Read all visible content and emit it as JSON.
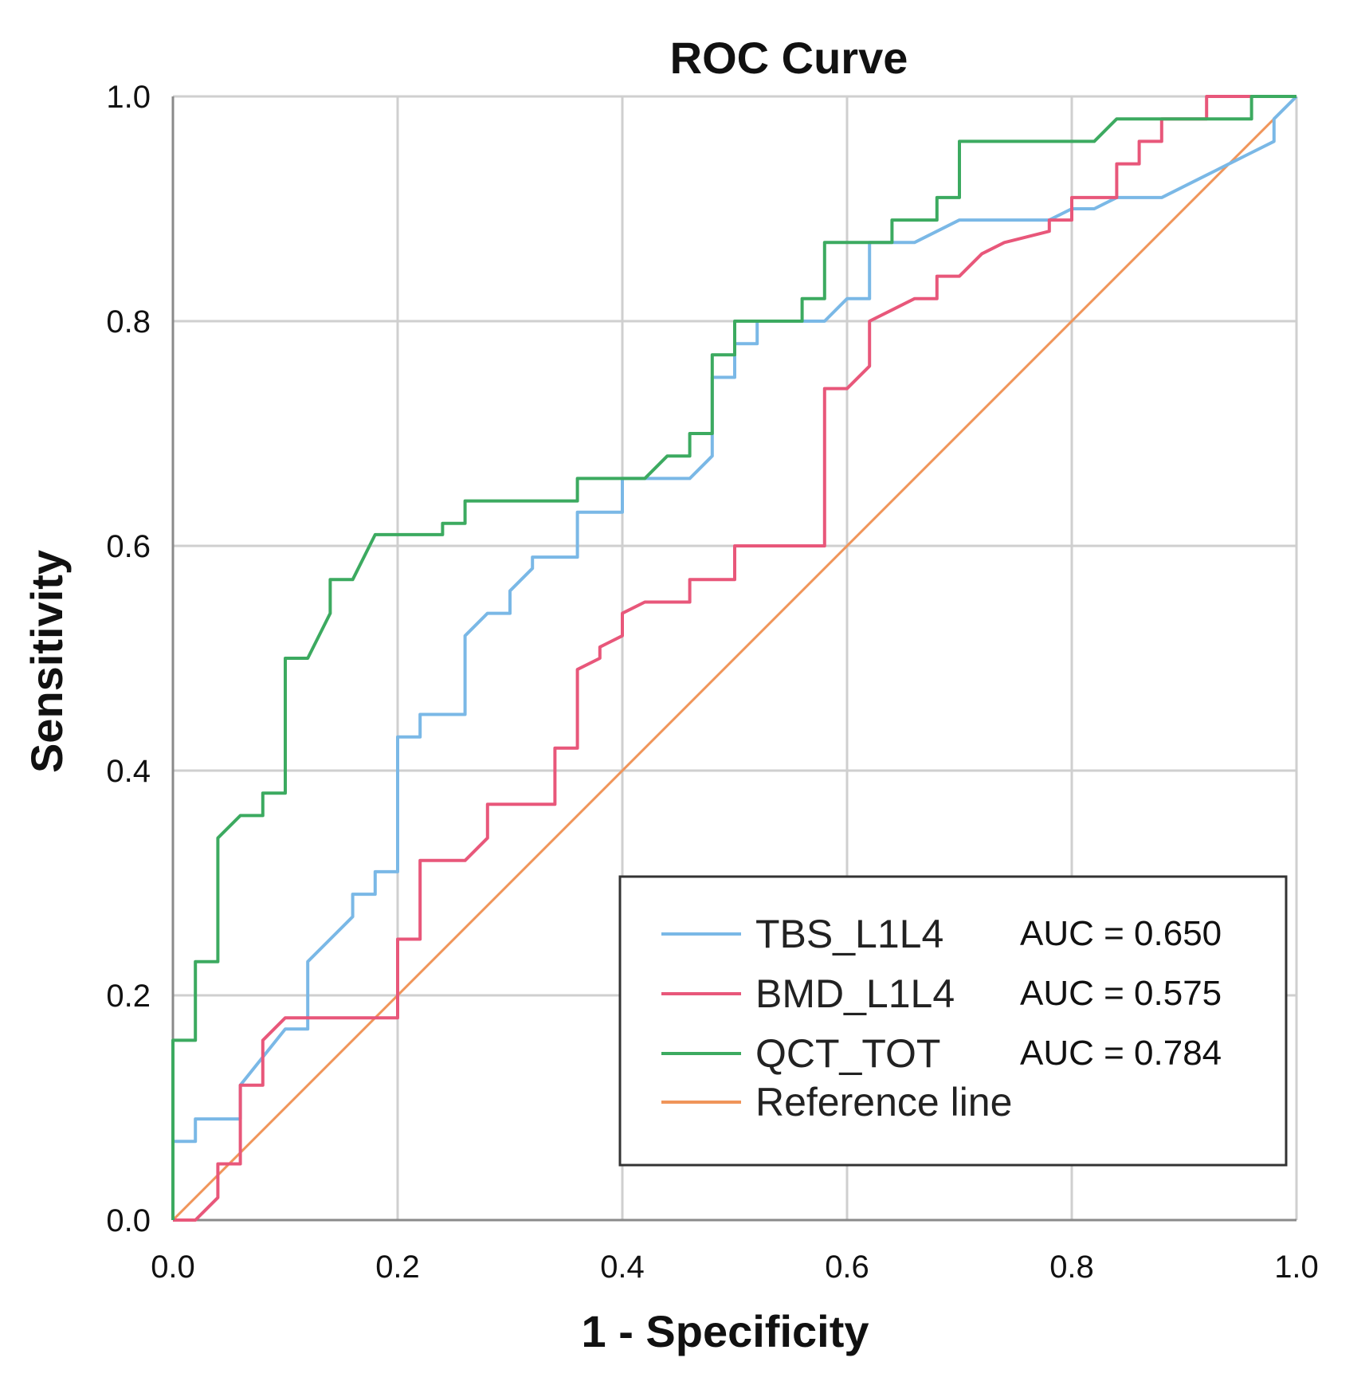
{
  "chart_data": {
    "type": "line",
    "title": "ROC Curve",
    "xlabel": "1 - Specificity",
    "ylabel": "Sensitivity",
    "xlim": [
      0,
      1
    ],
    "ylim": [
      0,
      1
    ],
    "xticks": [
      "0.0",
      "0.2",
      "0.4",
      "0.6",
      "0.8",
      "1.0"
    ],
    "yticks": [
      "0.0",
      "0.2",
      "0.4",
      "0.6",
      "0.8",
      "1.0"
    ],
    "grid": true,
    "legend_position": "bottom-right",
    "series": [
      {
        "name": "TBS_L1L4",
        "auc_label": "AUC = 0.650",
        "color": "#7ab8e6",
        "x": [
          0.0,
          0.0,
          0.02,
          0.02,
          0.06,
          0.06,
          0.1,
          0.12,
          0.12,
          0.14,
          0.16,
          0.16,
          0.18,
          0.18,
          0.2,
          0.2,
          0.22,
          0.22,
          0.26,
          0.26,
          0.28,
          0.3,
          0.3,
          0.32,
          0.32,
          0.36,
          0.36,
          0.38,
          0.4,
          0.4,
          0.42,
          0.46,
          0.48,
          0.48,
          0.5,
          0.5,
          0.52,
          0.52,
          0.54,
          0.58,
          0.6,
          0.62,
          0.62,
          0.66,
          0.68,
          0.7,
          0.78,
          0.8,
          0.82,
          0.84,
          0.88,
          0.9,
          0.92,
          0.94,
          0.96,
          0.98,
          0.98,
          1.0
        ],
        "y": [
          0.0,
          0.07,
          0.07,
          0.09,
          0.09,
          0.12,
          0.17,
          0.17,
          0.23,
          0.25,
          0.27,
          0.29,
          0.29,
          0.31,
          0.31,
          0.43,
          0.43,
          0.45,
          0.45,
          0.52,
          0.54,
          0.54,
          0.56,
          0.58,
          0.59,
          0.59,
          0.63,
          0.63,
          0.63,
          0.66,
          0.66,
          0.66,
          0.68,
          0.75,
          0.75,
          0.78,
          0.78,
          0.8,
          0.8,
          0.8,
          0.82,
          0.82,
          0.87,
          0.87,
          0.88,
          0.89,
          0.89,
          0.9,
          0.9,
          0.91,
          0.91,
          0.92,
          0.93,
          0.94,
          0.95,
          0.96,
          0.98,
          1.0
        ]
      },
      {
        "name": "BMD_L1L4",
        "auc_label": "AUC = 0.575",
        "color": "#e8577a",
        "x": [
          0.0,
          0.02,
          0.04,
          0.04,
          0.06,
          0.06,
          0.08,
          0.08,
          0.1,
          0.12,
          0.2,
          0.2,
          0.22,
          0.22,
          0.26,
          0.28,
          0.28,
          0.34,
          0.34,
          0.36,
          0.36,
          0.38,
          0.38,
          0.4,
          0.4,
          0.42,
          0.46,
          0.46,
          0.5,
          0.5,
          0.52,
          0.58,
          0.58,
          0.6,
          0.6,
          0.62,
          0.62,
          0.64,
          0.66,
          0.68,
          0.68,
          0.7,
          0.72,
          0.74,
          0.78,
          0.78,
          0.8,
          0.8,
          0.84,
          0.84,
          0.86,
          0.86,
          0.88,
          0.88,
          0.92,
          0.92,
          0.94,
          0.96,
          1.0
        ],
        "y": [
          0.0,
          0.0,
          0.02,
          0.05,
          0.05,
          0.12,
          0.12,
          0.16,
          0.18,
          0.18,
          0.18,
          0.25,
          0.25,
          0.32,
          0.32,
          0.34,
          0.37,
          0.37,
          0.42,
          0.42,
          0.49,
          0.5,
          0.51,
          0.52,
          0.54,
          0.55,
          0.55,
          0.57,
          0.57,
          0.6,
          0.6,
          0.6,
          0.74,
          0.74,
          0.74,
          0.76,
          0.8,
          0.81,
          0.82,
          0.82,
          0.84,
          0.84,
          0.86,
          0.87,
          0.88,
          0.89,
          0.89,
          0.91,
          0.91,
          0.94,
          0.94,
          0.96,
          0.96,
          0.98,
          0.98,
          1.0,
          1.0,
          1.0,
          1.0
        ]
      },
      {
        "name": "QCT_TOT",
        "auc_label": "AUC = 0.784",
        "color": "#3caa60",
        "x": [
          0.0,
          0.0,
          0.02,
          0.02,
          0.04,
          0.04,
          0.06,
          0.08,
          0.08,
          0.1,
          0.1,
          0.12,
          0.14,
          0.14,
          0.16,
          0.18,
          0.2,
          0.24,
          0.24,
          0.26,
          0.26,
          0.34,
          0.36,
          0.36,
          0.42,
          0.44,
          0.46,
          0.46,
          0.48,
          0.48,
          0.5,
          0.5,
          0.54,
          0.56,
          0.56,
          0.58,
          0.58,
          0.62,
          0.64,
          0.64,
          0.66,
          0.68,
          0.68,
          0.7,
          0.7,
          0.8,
          0.82,
          0.84,
          0.86,
          0.96,
          0.96,
          1.0
        ],
        "y": [
          0.0,
          0.16,
          0.16,
          0.23,
          0.23,
          0.34,
          0.36,
          0.36,
          0.38,
          0.38,
          0.5,
          0.5,
          0.54,
          0.57,
          0.57,
          0.61,
          0.61,
          0.61,
          0.62,
          0.62,
          0.64,
          0.64,
          0.64,
          0.66,
          0.66,
          0.68,
          0.68,
          0.7,
          0.7,
          0.77,
          0.77,
          0.8,
          0.8,
          0.8,
          0.82,
          0.82,
          0.87,
          0.87,
          0.87,
          0.89,
          0.89,
          0.89,
          0.91,
          0.91,
          0.96,
          0.96,
          0.96,
          0.98,
          0.98,
          0.98,
          1.0,
          1.0
        ]
      },
      {
        "name": "Reference line",
        "auc_label": "",
        "color": "#f0955a",
        "x": [
          0.0,
          1.0
        ],
        "y": [
          0.0,
          1.0
        ]
      }
    ]
  }
}
